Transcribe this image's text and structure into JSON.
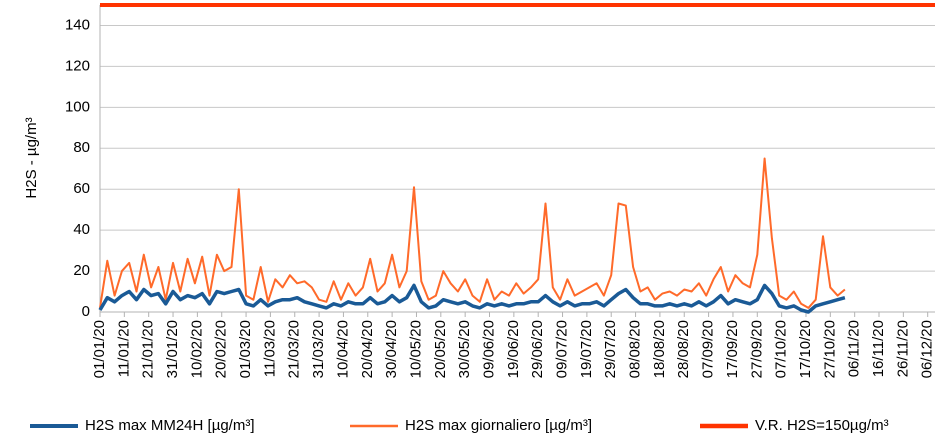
{
  "chart_data": {
    "type": "line",
    "y_label": "H2S - µg/m³",
    "x": [
      0,
      3,
      6,
      9,
      12,
      15,
      18,
      21,
      24,
      27,
      30,
      33,
      36,
      39,
      42,
      45,
      48,
      51,
      54,
      57,
      60,
      63,
      66,
      69,
      72,
      75,
      78,
      81,
      84,
      87,
      90,
      93,
      96,
      99,
      102,
      105,
      108,
      111,
      114,
      117,
      120,
      123,
      126,
      129,
      132,
      135,
      138,
      141,
      144,
      147,
      150,
      153,
      156,
      159,
      162,
      165,
      168,
      171,
      174,
      177,
      180,
      183,
      186,
      189,
      192,
      195,
      198,
      201,
      204,
      207,
      210,
      213,
      216,
      219,
      222,
      225,
      228,
      231,
      234,
      237,
      240,
      243,
      246,
      249,
      252,
      255,
      258,
      261,
      264,
      267,
      270,
      273,
      276,
      279,
      282,
      285,
      288,
      291,
      294,
      297,
      300,
      303,
      306
    ],
    "series": [
      {
        "name": "H2S max MM24H  [µg/m³]",
        "color": "#1a5a96",
        "values": [
          1,
          7,
          5,
          8,
          10,
          6,
          11,
          8,
          9,
          4,
          10,
          6,
          8,
          7,
          9,
          4,
          10,
          9,
          10,
          11,
          4,
          3,
          6,
          3,
          5,
          6,
          6,
          7,
          5,
          4,
          3,
          2,
          4,
          3,
          5,
          4,
          4,
          7,
          4,
          5,
          8,
          5,
          7,
          13,
          5,
          2,
          3,
          6,
          5,
          4,
          5,
          3,
          2,
          4,
          3,
          4,
          3,
          4,
          4,
          5,
          5,
          8,
          5,
          3,
          5,
          3,
          4,
          4,
          5,
          3,
          6,
          9,
          11,
          7,
          4,
          4,
          3,
          3,
          4,
          3,
          4,
          3,
          5,
          3,
          5,
          8,
          4,
          6,
          5,
          4,
          6,
          13,
          9,
          3,
          2,
          3,
          1,
          0,
          3,
          4,
          5,
          6,
          7
        ]
      },
      {
        "name": "H2S max giornaliero [µg/m³]",
        "color": "#ff6a2a",
        "values": [
          2,
          25,
          8,
          20,
          24,
          10,
          28,
          12,
          22,
          6,
          24,
          10,
          26,
          14,
          27,
          8,
          28,
          20,
          22,
          60,
          8,
          6,
          22,
          5,
          16,
          12,
          18,
          14,
          15,
          12,
          6,
          5,
          15,
          6,
          14,
          8,
          12,
          26,
          10,
          14,
          28,
          12,
          20,
          61,
          15,
          6,
          8,
          20,
          14,
          10,
          16,
          8,
          5,
          16,
          6,
          10,
          8,
          14,
          9,
          12,
          16,
          53,
          12,
          6,
          16,
          8,
          10,
          12,
          14,
          8,
          18,
          53,
          52,
          22,
          10,
          12,
          6,
          9,
          10,
          8,
          11,
          10,
          14,
          8,
          16,
          22,
          10,
          18,
          14,
          12,
          28,
          75,
          36,
          8,
          6,
          10,
          4,
          2,
          6,
          37,
          12,
          8,
          11
        ]
      },
      {
        "name": "V.R. H2S=150µg/m³",
        "color": "#ff3300",
        "x": [
          0,
          343
        ],
        "values": [
          150,
          150
        ]
      }
    ],
    "xlim": [
      0,
      343
    ],
    "xticks": [
      {
        "value": 0,
        "label": "01/01/20"
      },
      {
        "value": 10,
        "label": "11/01/20"
      },
      {
        "value": 20,
        "label": "21/01/20"
      },
      {
        "value": 30,
        "label": "31/01/20"
      },
      {
        "value": 40,
        "label": "10/02/20"
      },
      {
        "value": 50,
        "label": "20/02/20"
      },
      {
        "value": 60,
        "label": "01/03/20"
      },
      {
        "value": 70,
        "label": "11/03/20"
      },
      {
        "value": 80,
        "label": "21/03/20"
      },
      {
        "value": 90,
        "label": "31/03/20"
      },
      {
        "value": 100,
        "label": "10/04/20"
      },
      {
        "value": 110,
        "label": "20/04/20"
      },
      {
        "value": 120,
        "label": "30/04/20"
      },
      {
        "value": 130,
        "label": "10/05/20"
      },
      {
        "value": 140,
        "label": "20/05/20"
      },
      {
        "value": 150,
        "label": "30/05/20"
      },
      {
        "value": 160,
        "label": "09/06/20"
      },
      {
        "value": 170,
        "label": "19/06/20"
      },
      {
        "value": 180,
        "label": "29/06/20"
      },
      {
        "value": 190,
        "label": "09/07/20"
      },
      {
        "value": 200,
        "label": "19/07/20"
      },
      {
        "value": 210,
        "label": "29/07/20"
      },
      {
        "value": 220,
        "label": "08/08/20"
      },
      {
        "value": 230,
        "label": "18/08/20"
      },
      {
        "value": 240,
        "label": "28/08/20"
      },
      {
        "value": 250,
        "label": "07/09/20"
      },
      {
        "value": 260,
        "label": "17/09/20"
      },
      {
        "value": 270,
        "label": "27/09/20"
      },
      {
        "value": 280,
        "label": "07/10/20"
      },
      {
        "value": 290,
        "label": "17/10/20"
      },
      {
        "value": 300,
        "label": "27/10/20"
      },
      {
        "value": 310,
        "label": "06/11/20"
      },
      {
        "value": 320,
        "label": "16/11/20"
      },
      {
        "value": 330,
        "label": "26/11/20"
      },
      {
        "value": 340,
        "label": "06/12/20"
      }
    ],
    "ylim": [
      0,
      150
    ],
    "yticks": [
      0,
      20,
      40,
      60,
      80,
      100,
      120,
      140
    ],
    "grid": true,
    "legend": "bottom"
  }
}
